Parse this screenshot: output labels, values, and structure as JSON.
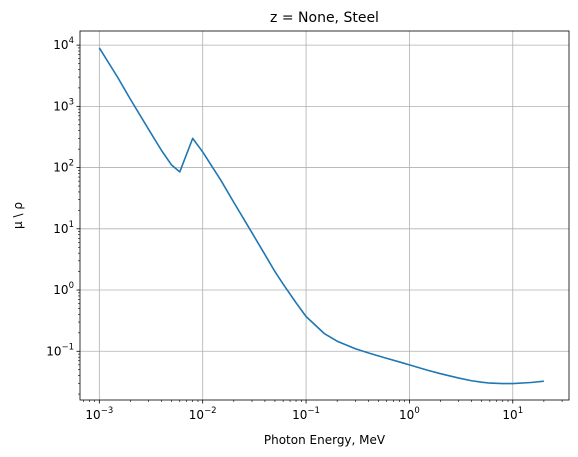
{
  "chart_data": {
    "type": "line",
    "title": "z = None, Steel",
    "xlabel": "Photon Energy, MeV",
    "ylabel": "μ \\ ρ",
    "xscale": "log",
    "yscale": "log",
    "xlim": [
      0.00065,
      35
    ],
    "ylim": [
      0.016,
      17000
    ],
    "grid": true,
    "x_ticks": [
      {
        "value": 0.001,
        "base": "10",
        "exp": "−3"
      },
      {
        "value": 0.01,
        "base": "10",
        "exp": "−2"
      },
      {
        "value": 0.1,
        "base": "10",
        "exp": "−1"
      },
      {
        "value": 1,
        "base": "10",
        "exp": "0"
      },
      {
        "value": 10,
        "base": "10",
        "exp": "1"
      }
    ],
    "y_ticks": [
      {
        "value": 0.1,
        "base": "10",
        "exp": "−1"
      },
      {
        "value": 1,
        "base": "10",
        "exp": "0"
      },
      {
        "value": 10,
        "base": "10",
        "exp": "1"
      },
      {
        "value": 100,
        "base": "10",
        "exp": "2"
      },
      {
        "value": 1000,
        "base": "10",
        "exp": "3"
      },
      {
        "value": 10000,
        "base": "10",
        "exp": "4"
      }
    ],
    "series": [
      {
        "color": "#1f77b4",
        "points": [
          [
            0.001,
            9000
          ],
          [
            0.0015,
            3000
          ],
          [
            0.002,
            1300
          ],
          [
            0.003,
            420
          ],
          [
            0.004,
            190
          ],
          [
            0.005,
            110
          ],
          [
            0.006,
            85
          ],
          [
            0.008,
            300
          ],
          [
            0.01,
            180
          ],
          [
            0.015,
            62
          ],
          [
            0.02,
            27
          ],
          [
            0.03,
            8.6
          ],
          [
            0.04,
            3.8
          ],
          [
            0.05,
            2.0
          ],
          [
            0.06,
            1.25
          ],
          [
            0.08,
            0.62
          ],
          [
            0.1,
            0.37
          ],
          [
            0.15,
            0.195
          ],
          [
            0.2,
            0.146
          ],
          [
            0.3,
            0.11
          ],
          [
            0.4,
            0.094
          ],
          [
            0.5,
            0.084
          ],
          [
            0.6,
            0.077
          ],
          [
            0.8,
            0.067
          ],
          [
            1.0,
            0.06
          ],
          [
            1.5,
            0.049
          ],
          [
            2.0,
            0.043
          ],
          [
            3.0,
            0.0365
          ],
          [
            4.0,
            0.033
          ],
          [
            5.0,
            0.0313
          ],
          [
            6.0,
            0.0302
          ],
          [
            8.0,
            0.0297
          ],
          [
            10.0,
            0.0297
          ],
          [
            15.0,
            0.0309
          ],
          [
            20.0,
            0.0325
          ]
        ]
      }
    ]
  }
}
